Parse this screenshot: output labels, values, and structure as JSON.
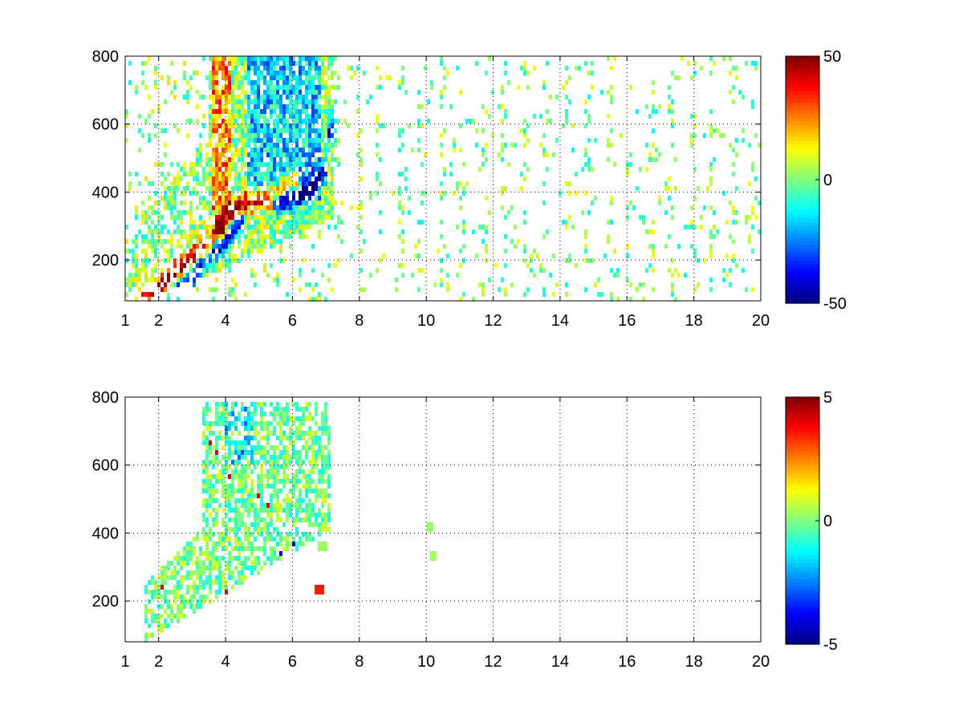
{
  "chart_data": [
    {
      "type": "heatmap",
      "title": "",
      "xlabel": "",
      "ylabel": "",
      "xlim": [
        1,
        20
      ],
      "ylim": [
        80,
        800
      ],
      "x_ticks": [
        "1",
        "2",
        "4",
        "6",
        "8",
        "10",
        "12",
        "14",
        "16",
        "18",
        "20"
      ],
      "y_ticks": [
        "200",
        "400",
        "600",
        "800"
      ],
      "grid": true,
      "colormap": "jet",
      "colorbar": {
        "range": [
          -50,
          50
        ],
        "ticks": [
          "50",
          "0",
          "-50"
        ]
      },
      "features": {
        "positive_ridges": [
          {
            "x": [
              1.5,
              2.0,
              2.5,
              3.0,
              3.5,
              3.8
            ],
            "y": [
              90,
              120,
              170,
              210,
              240,
              300
            ]
          },
          {
            "x": [
              3.8,
              4.2,
              4.6,
              5.0,
              5.5,
              6.0
            ],
            "y": [
              300,
              340,
              370,
              380,
              390,
              430
            ]
          }
        ],
        "negative_ridges": [
          {
            "x": [
              2.5,
              3.0,
              3.5,
              4.0,
              4.4
            ],
            "y": [
              100,
              150,
              220,
              250,
              310
            ]
          },
          {
            "x": [
              5.6,
              6.0,
              6.5,
              7.0,
              7.1
            ],
            "y": [
              370,
              380,
              400,
              470,
              580
            ]
          }
        ],
        "dense_region_x": [
          1,
          7.2
        ],
        "sparse_region_x": [
          7.2,
          20
        ]
      }
    },
    {
      "type": "heatmap",
      "title": "",
      "xlabel": "",
      "ylabel": "",
      "xlim": [
        1,
        20
      ],
      "ylim": [
        80,
        800
      ],
      "x_ticks": [
        "1",
        "2",
        "4",
        "6",
        "8",
        "10",
        "12",
        "14",
        "16",
        "18",
        "20"
      ],
      "y_ticks": [
        "200",
        "400",
        "600",
        "800"
      ],
      "grid": true,
      "colormap": "jet",
      "colorbar": {
        "range": [
          -5,
          5
        ],
        "ticks": [
          "5",
          "0",
          "-5"
        ]
      },
      "features": {
        "dense_region_x": [
          1.6,
          7.1
        ],
        "dense_region_y": [
          90,
          780
        ],
        "isolated_points": [
          {
            "x": 10.1,
            "y": 420
          },
          {
            "x": 10.2,
            "y": 330
          },
          {
            "x": 6.8,
            "y": 230
          },
          {
            "x": 6.9,
            "y": 360
          }
        ]
      }
    }
  ]
}
